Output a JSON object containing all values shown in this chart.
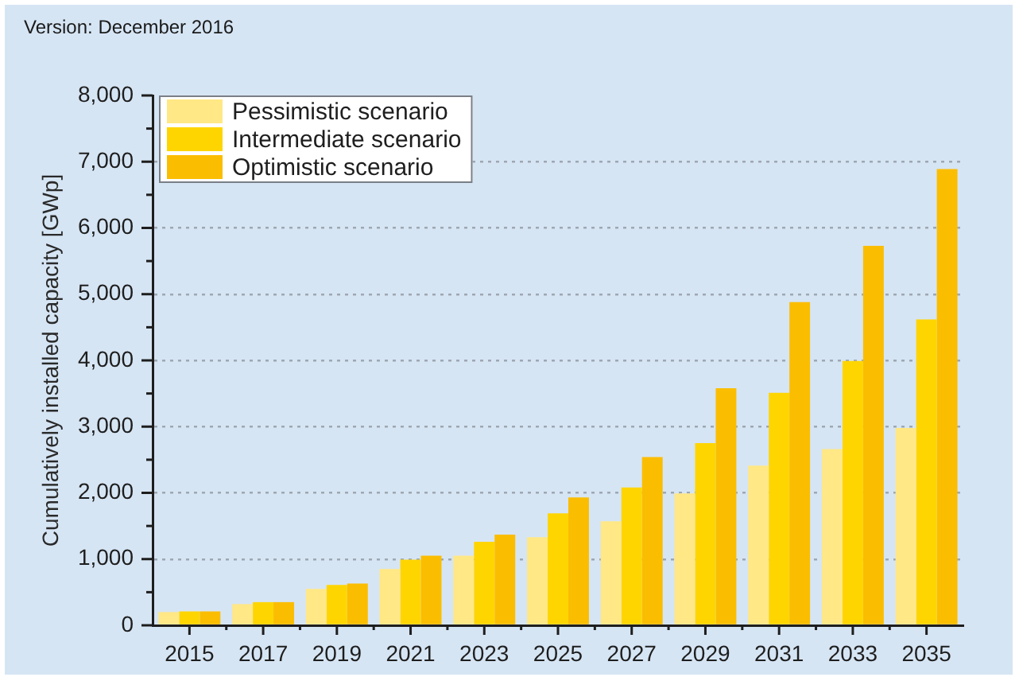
{
  "chart_data": {
    "type": "bar",
    "ylabel": "Cumulatively installed capacity [GWp]",
    "annotations": [
      "Version: December 2016"
    ],
    "categories": [
      "2015",
      "2017",
      "2019",
      "2021",
      "2023",
      "2025",
      "2027",
      "2029",
      "2031",
      "2033",
      "2035"
    ],
    "series": [
      {
        "name": "Pessimistic scenario",
        "color": "#ffe885",
        "values": [
          200,
          320,
          550,
          850,
          1050,
          1330,
          1570,
          1990,
          2410,
          2660,
          2980
        ]
      },
      {
        "name": "Intermediate scenario",
        "color": "#ffd500",
        "values": [
          210,
          350,
          610,
          990,
          1260,
          1690,
          2080,
          2750,
          3510,
          3990,
          4620
        ]
      },
      {
        "name": "Optimistic scenario",
        "color": "#fbbd00",
        "values": [
          210,
          350,
          630,
          1050,
          1370,
          1930,
          2540,
          3580,
          4880,
          5730,
          6890
        ]
      }
    ],
    "ylim": [
      0,
      8000
    ],
    "yticks": [
      0,
      {
        "value": 500,
        "label": null
      },
      {
        "value": 1000,
        "label": "1,000"
      },
      {
        "value": 1500,
        "label": null
      },
      {
        "value": 2000,
        "label": "2,000"
      },
      {
        "value": 2500,
        "label": null
      },
      {
        "value": 3000,
        "label": "3,000"
      },
      {
        "value": 3500,
        "label": null
      },
      {
        "value": 4000,
        "label": "4,000"
      },
      {
        "value": 4500,
        "label": null
      },
      {
        "value": 5000,
        "label": "5,000"
      },
      {
        "value": 5500,
        "label": null
      },
      {
        "value": 6000,
        "label": "6,000"
      },
      {
        "value": 6500,
        "label": null
      },
      {
        "value": 7000,
        "label": "7,000"
      },
      {
        "value": 7500,
        "label": null
      },
      {
        "value": 8000,
        "label": "8,000"
      }
    ],
    "grid": "y",
    "legend": "top left"
  }
}
